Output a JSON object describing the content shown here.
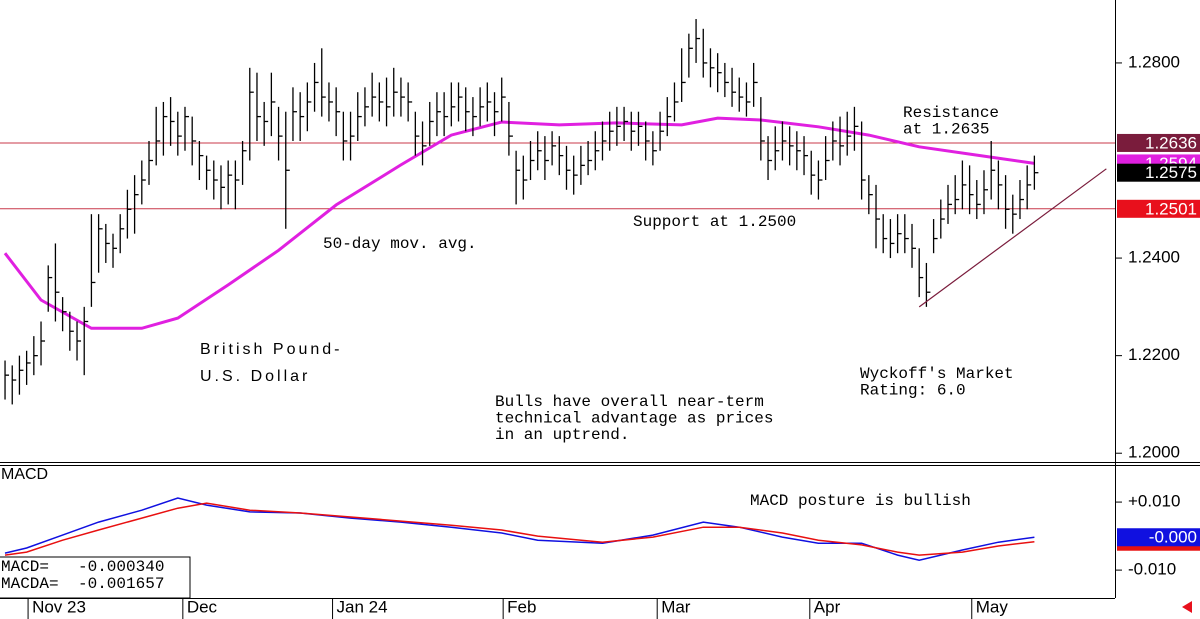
{
  "chart_data": [
    {
      "type": "ohlc",
      "title": [
        "British Pound-",
        "U.S. Dollar"
      ],
      "color": "#000000",
      "xlim": [
        -0.7,
        154.2
      ],
      "ylim": [
        1.1982,
        1.2929
      ],
      "yticks": [
        {
          "value": 1.2,
          "label": "1.2000"
        },
        {
          "value": 1.22,
          "label": "1.2200"
        },
        {
          "value": 1.24,
          "label": "1.2400"
        },
        {
          "value": 1.28,
          "label": "1.2800"
        }
      ],
      "highs": [
        1.219,
        1.218,
        1.22,
        1.221,
        1.224,
        1.227,
        1.2385,
        1.243,
        1.232,
        1.229,
        1.227,
        1.23,
        1.249,
        1.249,
        1.247,
        1.245,
        1.249,
        1.254,
        1.257,
        1.26,
        1.264,
        1.271,
        1.272,
        1.273,
        1.27,
        1.271,
        1.269,
        1.264,
        1.261,
        1.26,
        1.259,
        1.26,
        1.26,
        1.264,
        1.279,
        1.278,
        1.272,
        1.278,
        1.271,
        1.27,
        1.275,
        1.274,
        1.276,
        1.28,
        1.283,
        1.276,
        1.275,
        1.27,
        1.27,
        1.274,
        1.275,
        1.278,
        1.276,
        1.277,
        1.279,
        1.277,
        1.276,
        1.27,
        1.268,
        1.272,
        1.274,
        1.274,
        1.276,
        1.276,
        1.275,
        1.273,
        1.275,
        1.276,
        1.274,
        1.277,
        1.272,
        1.262,
        1.261,
        1.264,
        1.266,
        1.265,
        1.266,
        1.265,
        1.263,
        1.261,
        1.263,
        1.264,
        1.266,
        1.268,
        1.27,
        1.271,
        1.271,
        1.27,
        1.27,
        1.268,
        1.266,
        1.27,
        1.273,
        1.276,
        1.283,
        1.286,
        1.289,
        1.287,
        1.283,
        1.282,
        1.28,
        1.279,
        1.277,
        1.276,
        1.28,
        1.273,
        1.265,
        1.267,
        1.268,
        1.267,
        1.266,
        1.265,
        1.262,
        1.26,
        1.265,
        1.268,
        1.269,
        1.27,
        1.271,
        1.268,
        1.257,
        1.255,
        1.249,
        1.248,
        1.249,
        1.249,
        1.247,
        1.242,
        1.239,
        1.248,
        1.252,
        1.255,
        1.257,
        1.26,
        1.259,
        1.256,
        1.258,
        1.264,
        1.26,
        1.257,
        1.253,
        1.256,
        1.259,
        1.261
      ],
      "lows": [
        1.211,
        1.21,
        1.212,
        1.214,
        1.216,
        1.218,
        1.229,
        1.227,
        1.225,
        1.221,
        1.219,
        1.216,
        1.23,
        1.237,
        1.239,
        1.238,
        1.241,
        1.244,
        1.245,
        1.251,
        1.255,
        1.259,
        1.261,
        1.263,
        1.261,
        1.262,
        1.259,
        1.256,
        1.254,
        1.252,
        1.25,
        1.251,
        1.25,
        1.255,
        1.26,
        1.264,
        1.263,
        1.265,
        1.26,
        1.246,
        1.264,
        1.264,
        1.266,
        1.27,
        1.269,
        1.268,
        1.265,
        1.26,
        1.26,
        1.264,
        1.267,
        1.269,
        1.268,
        1.267,
        1.269,
        1.269,
        1.268,
        1.261,
        1.259,
        1.263,
        1.265,
        1.265,
        1.267,
        1.268,
        1.266,
        1.265,
        1.267,
        1.268,
        1.265,
        1.268,
        1.261,
        1.251,
        1.252,
        1.256,
        1.258,
        1.256,
        1.259,
        1.257,
        1.254,
        1.253,
        1.255,
        1.257,
        1.258,
        1.26,
        1.262,
        1.263,
        1.264,
        1.262,
        1.263,
        1.26,
        1.259,
        1.262,
        1.265,
        1.268,
        1.272,
        1.277,
        1.28,
        1.277,
        1.275,
        1.274,
        1.273,
        1.271,
        1.27,
        1.269,
        1.271,
        1.26,
        1.256,
        1.258,
        1.26,
        1.259,
        1.258,
        1.257,
        1.253,
        1.252,
        1.256,
        1.26,
        1.259,
        1.261,
        1.262,
        1.252,
        1.249,
        1.242,
        1.241,
        1.24,
        1.241,
        1.241,
        1.238,
        1.232,
        1.23,
        1.241,
        1.244,
        1.247,
        1.249,
        1.25,
        1.249,
        1.248,
        1.249,
        1.252,
        1.25,
        1.246,
        1.245,
        1.248,
        1.25,
        1.254
      ],
      "closes": [
        1.216,
        1.215,
        1.217,
        1.2185,
        1.22,
        1.223,
        1.236,
        1.233,
        1.229,
        1.225,
        1.223,
        1.227,
        1.235,
        1.246,
        1.243,
        1.242,
        1.246,
        1.25,
        1.253,
        1.256,
        1.26,
        1.264,
        1.269,
        1.268,
        1.265,
        1.269,
        1.264,
        1.261,
        1.258,
        1.256,
        1.2545,
        1.257,
        1.256,
        1.262,
        1.274,
        1.269,
        1.268,
        1.272,
        1.265,
        1.258,
        1.27,
        1.269,
        1.272,
        1.276,
        1.273,
        1.272,
        1.27,
        1.264,
        1.265,
        1.269,
        1.271,
        1.273,
        1.272,
        1.271,
        1.274,
        1.273,
        1.272,
        1.265,
        1.263,
        1.268,
        1.27,
        1.269,
        1.271,
        1.273,
        1.27,
        1.269,
        1.271,
        1.272,
        1.27,
        1.273,
        1.265,
        1.258,
        1.256,
        1.26,
        1.262,
        1.26,
        1.263,
        1.261,
        1.258,
        1.257,
        1.259,
        1.26,
        1.262,
        1.264,
        1.266,
        1.267,
        1.268,
        1.266,
        1.267,
        1.264,
        1.262,
        1.266,
        1.269,
        1.272,
        1.276,
        1.283,
        1.285,
        1.28,
        1.279,
        1.278,
        1.276,
        1.274,
        1.273,
        1.272,
        1.276,
        1.264,
        1.26,
        1.262,
        1.264,
        1.263,
        1.262,
        1.261,
        1.257,
        1.256,
        1.26,
        1.264,
        1.263,
        1.265,
        1.267,
        1.256,
        1.253,
        1.248,
        1.244,
        1.243,
        1.245,
        1.244,
        1.242,
        1.236,
        1.233,
        1.244,
        1.248,
        1.251,
        1.252,
        1.255,
        1.253,
        1.251,
        1.254,
        1.258,
        1.255,
        1.25,
        1.249,
        1.252,
        1.255,
        1.2575
      ],
      "series": [
        {
          "name": "50-day mov. avg.",
          "color": "#e020e0",
          "x": [
            0,
            5,
            12,
            19,
            24,
            31,
            38,
            46,
            55,
            62,
            69,
            77,
            85,
            94,
            99,
            105,
            113,
            120,
            127,
            135,
            143
          ],
          "values": [
            1.241,
            1.2314,
            1.2256,
            1.2256,
            1.2277,
            1.2345,
            1.2416,
            1.2509,
            1.2591,
            1.2652,
            1.2679,
            1.2673,
            1.2677,
            1.2673,
            1.2687,
            1.2683,
            1.2669,
            1.2652,
            1.2628,
            1.2611,
            1.2594
          ]
        }
      ],
      "levels": [
        {
          "value": 1.2636,
          "color": "#7a1c3c"
        },
        {
          "value": 1.2501,
          "color": "#e8101c"
        }
      ],
      "trendline": {
        "x": [
          127,
          153
        ],
        "values": [
          1.23,
          1.2583
        ]
      },
      "annotations": [
        {
          "text": [
            "Support at 1.2500"
          ],
          "color": "#e8101c"
        },
        {
          "text": [
            "Resistance",
            "at 1.2635"
          ],
          "color": "#000000"
        },
        {
          "text": [
            "Wyckoff's Market",
            "Rating: 6.0"
          ],
          "color": "#000000"
        },
        {
          "text": [
            "Bulls have overall near-term",
            "technical advantage as prices",
            "in an uptrend."
          ],
          "color": "#1010e0"
        }
      ]
    },
    {
      "type": "line",
      "title": "MACD",
      "xlim": [
        -0.7,
        154.2
      ],
      "ylim": [
        -0.0182,
        0.0209
      ],
      "yticks": [
        {
          "value": 0.01,
          "label": "+0.010"
        },
        {
          "value": -0.01,
          "label": "-0.010"
        }
      ],
      "xticks": [
        {
          "value": 3.2,
          "label": "Nov 23"
        },
        {
          "value": 24.7,
          "label": "Dec"
        },
        {
          "value": 45.5,
          "label": "Jan 24"
        },
        {
          "value": 69.2,
          "label": "Feb"
        },
        {
          "value": 90.6,
          "label": "Mar"
        },
        {
          "value": 111.8,
          "label": "Apr"
        },
        {
          "value": 134.3,
          "label": "May"
        }
      ],
      "series": [
        {
          "name": "MACD=",
          "color": "#1010e0",
          "last_label": "-0.000340",
          "marker_label": "-0.000",
          "x": [
            0,
            3,
            8,
            13,
            19,
            24,
            28,
            34,
            41,
            48,
            55,
            62,
            69,
            74,
            83,
            90,
            97,
            102,
            108,
            113,
            119,
            124,
            127,
            133,
            138,
            143
          ],
          "values": [
            -0.005,
            -0.0035,
            0.0003,
            0.0041,
            0.0076,
            0.0112,
            0.0091,
            0.0071,
            0.0068,
            0.0053,
            0.0041,
            0.0026,
            0.0009,
            -0.0012,
            -0.0021,
            0.0003,
            0.0041,
            0.0026,
            -0.0003,
            -0.0021,
            -0.0021,
            -0.0056,
            -0.0071,
            -0.0041,
            -0.0018,
            -0.00034
          ]
        },
        {
          "name": "MACDA=",
          "color": "#e81010",
          "last_label": "-0.001657",
          "x": [
            0,
            3,
            8,
            13,
            19,
            24,
            28,
            34,
            41,
            48,
            55,
            62,
            69,
            74,
            83,
            90,
            97,
            102,
            108,
            113,
            119,
            124,
            127,
            133,
            138,
            143
          ],
          "values": [
            -0.0056,
            -0.0047,
            -0.0012,
            0.0018,
            0.0053,
            0.0082,
            0.0097,
            0.0076,
            0.0068,
            0.0056,
            0.0044,
            0.0032,
            0.0018,
            0.0,
            -0.0018,
            -0.0003,
            0.0026,
            0.0026,
            0.0009,
            -0.0012,
            -0.0026,
            -0.0047,
            -0.0056,
            -0.0047,
            -0.0029,
            -0.001657
          ]
        }
      ],
      "annotations": [
        {
          "text": [
            "MACD posture is bullish"
          ],
          "color": "#000000"
        }
      ]
    }
  ]
}
